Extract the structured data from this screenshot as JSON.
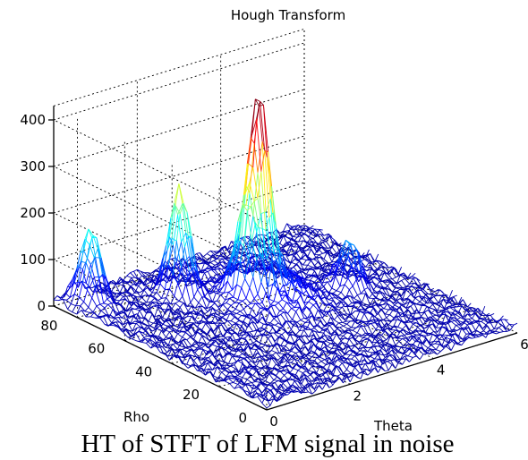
{
  "chart_data": {
    "type": "surface",
    "title": "Hough Transform",
    "xlabel": "Theta",
    "ylabel": "Rho",
    "zlabel": "",
    "x_ticks": [
      "0",
      "2",
      "4",
      "6"
    ],
    "y_ticks": [
      "0",
      "20",
      "40",
      "60",
      "80"
    ],
    "z_ticks": [
      "0",
      "100",
      "200",
      "300",
      "400"
    ],
    "xlim": [
      0,
      6
    ],
    "ylim": [
      0,
      90
    ],
    "zlim": [
      0,
      430
    ],
    "colormap": "jet",
    "grid": true,
    "noise_floor": 20,
    "peaks": [
      {
        "theta": 3.2,
        "rho": 60,
        "value": 380
      },
      {
        "theta": 2.8,
        "rho": 58,
        "value": 165
      },
      {
        "theta": 2.0,
        "rho": 72,
        "value": 230
      },
      {
        "theta": 4.7,
        "rho": 48,
        "value": 105
      },
      {
        "theta": 0.5,
        "rho": 83,
        "value": 155
      }
    ]
  },
  "caption": "HT of STFT of LFM signal in noise",
  "colors": {
    "low": "#0000c8",
    "mid": "#00d7d7",
    "high": "#e00000",
    "axes": "#000000",
    "background": "#ffffff"
  }
}
